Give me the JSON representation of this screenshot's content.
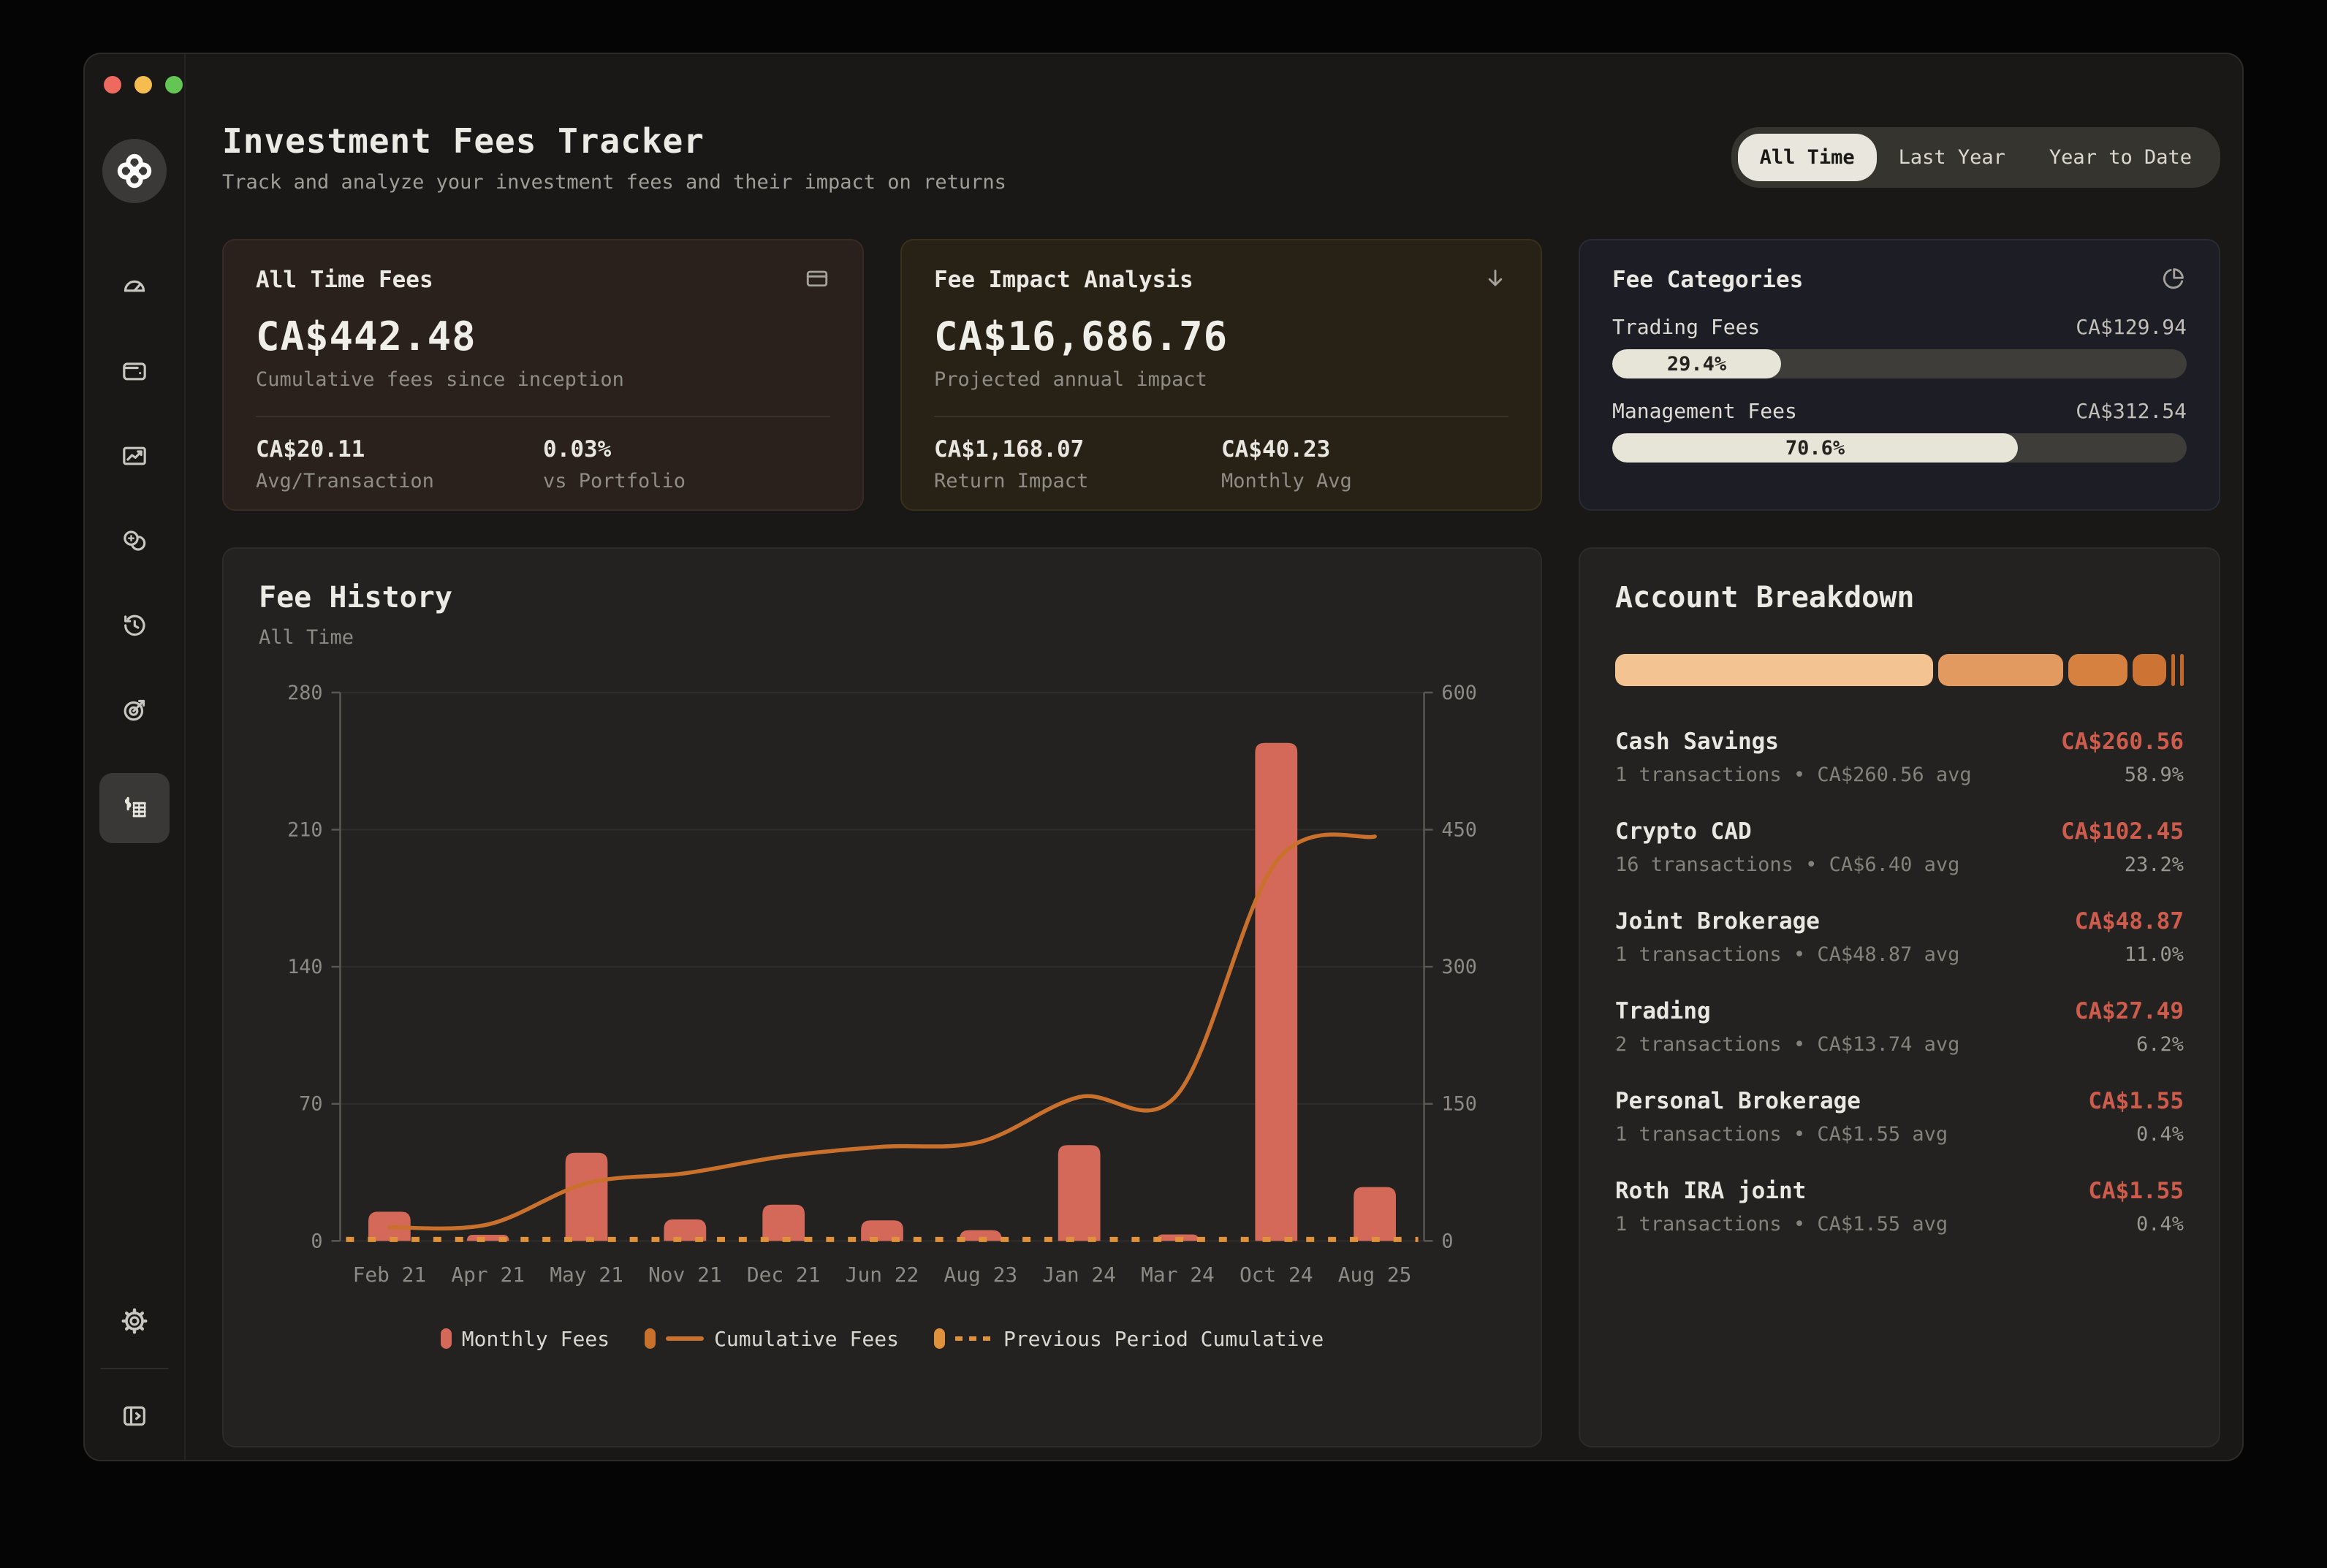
{
  "colors": {
    "bar_red": "#d4695a",
    "line_orange": "#c9712c",
    "dashed_orange": "#e0913c",
    "cream_fill": "#e7e4d8",
    "accent_amount_red": "#cd5c4c"
  },
  "window_controls": [
    "close",
    "minimize",
    "zoom"
  ],
  "traffic_colors": [
    "#ee6a5f",
    "#f5bd4f",
    "#62c554"
  ],
  "sidebar": {
    "logo_icon": "app-logo-icon",
    "items": [
      {
        "icon": "gauge-icon",
        "active": false
      },
      {
        "icon": "wallet-icon",
        "active": false
      },
      {
        "icon": "trending-chart-icon",
        "active": false
      },
      {
        "icon": "coins-icon",
        "active": false
      },
      {
        "icon": "history-icon",
        "active": false
      },
      {
        "icon": "target-icon",
        "active": false
      },
      {
        "icon": "fees-ledger-icon",
        "active": true
      }
    ],
    "bottom_items": [
      {
        "icon": "gear-icon"
      },
      {
        "icon": "panel-right-icon"
      }
    ]
  },
  "header": {
    "title": "Investment Fees Tracker",
    "subtitle": "Track and analyze your investment fees and their impact on returns",
    "time_tabs": [
      {
        "label": "All Time",
        "selected": true
      },
      {
        "label": "Last Year",
        "selected": false
      },
      {
        "label": "Year to Date",
        "selected": false
      }
    ]
  },
  "cards": {
    "all_time_fees": {
      "title": "All Time Fees",
      "icon": "credit-card-icon",
      "value": "CA$442.48",
      "caption": "Cumulative fees since inception",
      "stats": [
        {
          "value": "CA$20.11",
          "label": "Avg/Transaction"
        },
        {
          "value": "0.03%",
          "label": "vs Portfolio"
        }
      ]
    },
    "fee_impact": {
      "title": "Fee Impact Analysis",
      "icon": "arrow-down-icon",
      "value": "CA$16,686.76",
      "caption": "Projected annual impact",
      "stats": [
        {
          "value": "CA$1,168.07",
          "label": "Return Impact"
        },
        {
          "value": "CA$40.23",
          "label": "Monthly Avg"
        }
      ]
    },
    "fee_categories": {
      "title": "Fee Categories",
      "icon": "pie-chart-icon",
      "items": [
        {
          "label": "Trading Fees",
          "amount": "CA$129.94",
          "percent": 29.4,
          "percent_label": "29.4%"
        },
        {
          "label": "Management Fees",
          "amount": "CA$312.54",
          "percent": 70.6,
          "percent_label": "70.6%"
        }
      ]
    }
  },
  "fee_history": {
    "title": "Fee History",
    "subtitle": "All Time"
  },
  "chart_data": {
    "type": "bar",
    "categories": [
      "Feb 21",
      "Apr 21",
      "May 21",
      "Nov 21",
      "Dec 21",
      "Jun 22",
      "Aug 23",
      "Jan 24",
      "Mar 24",
      "Oct 24",
      "Aug 25"
    ],
    "series": [
      {
        "name": "Monthly Fees",
        "type": "bar",
        "axis": "left",
        "color": "#d4695a",
        "values": [
          14.9,
          3.1,
          45.0,
          11.0,
          18.5,
          10.5,
          5.5,
          48.9,
          3.3,
          254.3,
          27.5
        ]
      },
      {
        "name": "Cumulative Fees",
        "type": "line",
        "axis": "right",
        "color": "#c9712c",
        "values": [
          14.9,
          18.0,
          63.0,
          74.0,
          92.5,
          103.0,
          108.5,
          157.4,
          160.7,
          415.0,
          442.5
        ]
      },
      {
        "name": "Previous Period Cumulative",
        "type": "dashed-line",
        "axis": "right",
        "color": "#e0913c",
        "values": [
          0,
          0,
          0,
          0,
          0,
          0,
          0,
          0,
          0,
          0,
          0
        ]
      }
    ],
    "left_axis": {
      "ticks": [
        0,
        70,
        140,
        210,
        280
      ],
      "max": 280
    },
    "right_axis": {
      "ticks": [
        0,
        150,
        300,
        450,
        600
      ],
      "max": 600
    },
    "grid": true,
    "legend_position": "bottom"
  },
  "account_breakdown": {
    "title": "Account Breakdown",
    "segments": [
      {
        "label": "Cash Savings",
        "percent": 58.9,
        "color": "#f3c392"
      },
      {
        "label": "Crypto CAD",
        "percent": 23.2,
        "color": "#e39a60"
      },
      {
        "label": "Joint Brokerage",
        "percent": 11.0,
        "color": "#d6813f"
      },
      {
        "label": "Trading",
        "percent": 6.2,
        "color": "#cd7333"
      },
      {
        "label": "Personal Brokerage",
        "percent": 0.4,
        "color": "#c4682a"
      },
      {
        "label": "Roth IRA joint",
        "percent": 0.4,
        "color": "#c4682a"
      }
    ],
    "accounts": [
      {
        "name": "Cash Savings",
        "amount": "CA$260.56",
        "meta": "1 transactions • CA$260.56 avg",
        "share": "58.9%"
      },
      {
        "name": "Crypto CAD",
        "amount": "CA$102.45",
        "meta": "16 transactions • CA$6.40 avg",
        "share": "23.2%"
      },
      {
        "name": "Joint Brokerage",
        "amount": "CA$48.87",
        "meta": "1 transactions • CA$48.87 avg",
        "share": "11.0%"
      },
      {
        "name": "Trading",
        "amount": "CA$27.49",
        "meta": "2 transactions • CA$13.74 avg",
        "share": "6.2%"
      },
      {
        "name": "Personal Brokerage",
        "amount": "CA$1.55",
        "meta": "1 transactions • CA$1.55 avg",
        "share": "0.4%"
      },
      {
        "name": "Roth IRA joint",
        "amount": "CA$1.55",
        "meta": "1 transactions • CA$1.55 avg",
        "share": "0.4%"
      }
    ]
  }
}
